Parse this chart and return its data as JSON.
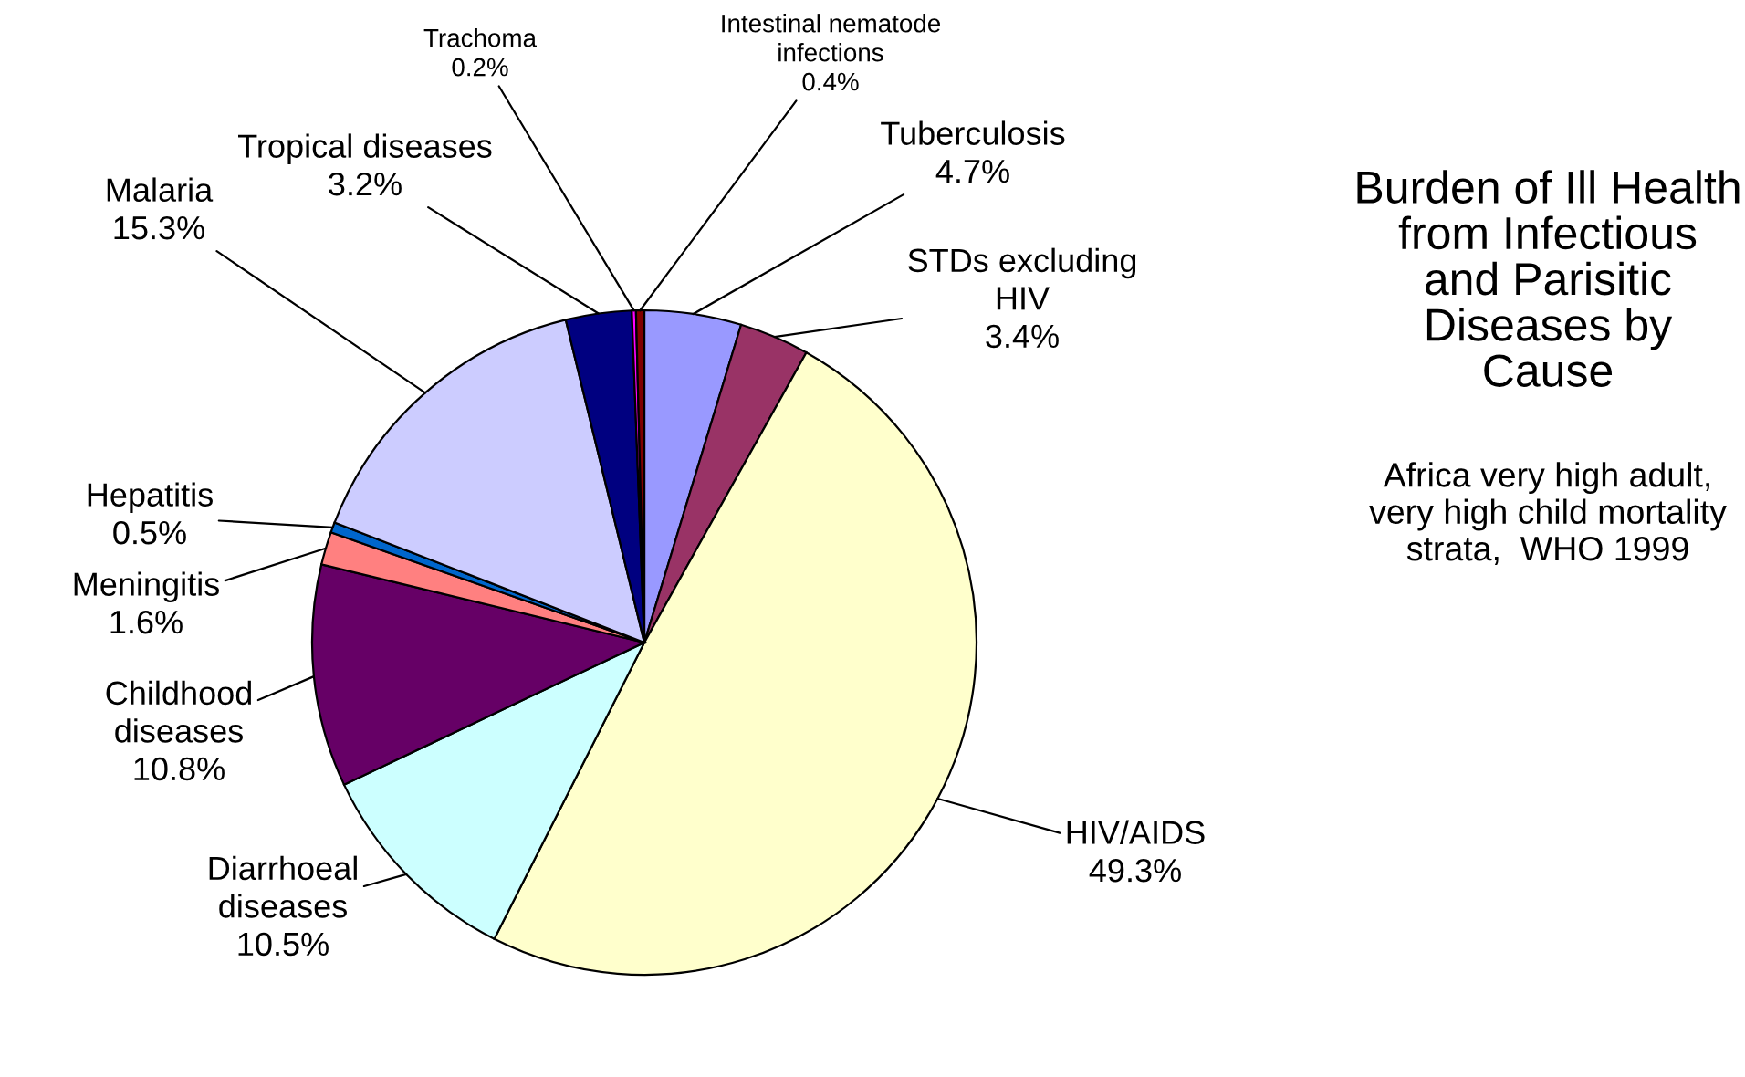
{
  "chart_data": {
    "type": "pie",
    "title": "Burden of Ill Health\nfrom Infectious\nand Parisitic\nDiseases by\nCause",
    "subtitle": "Africa very high adult,\nvery high child mortality\nstrata,  WHO 1999",
    "categories": [
      "Tuberculosis",
      "STDs excluding\nHIV",
      "HIV/AIDS",
      "Diarrhoeal\ndiseases",
      "Childhood\ndiseases",
      "Meningitis",
      "Hepatitis",
      "Malaria",
      "Tropical diseases",
      "Trachoma",
      "Intestinal nematode\ninfections"
    ],
    "values": [
      4.7,
      3.4,
      49.3,
      10.5,
      10.8,
      1.6,
      0.5,
      15.3,
      3.2,
      0.2,
      0.4
    ],
    "colors": [
      "#9999ff",
      "#993366",
      "#ffffcc",
      "#ccffff",
      "#660066",
      "#ff8080",
      "#0066cc",
      "#ccccff",
      "#000080",
      "#ff00ff",
      "#800000"
    ],
    "value_labels": [
      "4.7%",
      "3.4%",
      "49.3%",
      "10.5%",
      "10.8%",
      "1.6%",
      "0.5%",
      "15.3%",
      "3.2%",
      "0.2%",
      "0.4%"
    ]
  }
}
